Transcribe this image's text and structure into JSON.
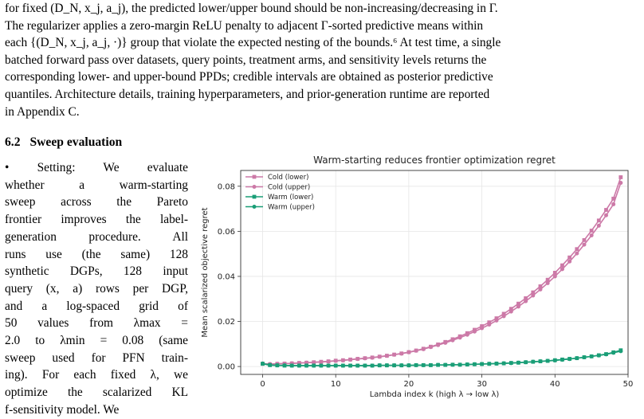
{
  "paragraph": {
    "lines": [
      "for fixed (D_N, x_j, a_j), the predicted lower/upper bound should be non-increasing/decreasing in Γ.",
      "The regularizer applies a zero-margin ReLU penalty to adjacent Γ-sorted predictive means within",
      "each {(D_N, x_j, a_j, ·)} group that violate the expected nesting of the bounds.⁶ At test time, a single",
      "batched forward pass over datasets, query points, treatment arms, and sensitivity levels returns the",
      "corresponding lower- and upper-bound PPDs; credible intervals are obtained as posterior predictive",
      "quantiles. Architecture details, training hyperparameters, and prior-generation runtime are reported",
      "in Appendix C."
    ]
  },
  "section": {
    "number": "6.2",
    "title": "Sweep evaluation"
  },
  "column": {
    "lines": [
      "• Setting:   We evaluate",
      "whether a warm-starting",
      "sweep across the Pareto",
      "frontier improves the label-",
      "generation procedure. All",
      "runs use (the same) 128",
      "synthetic DGPs, 128 input",
      "query (x, a) rows per DGP,",
      "and a log-spaced grid of",
      "50 values from λmax =",
      "2.0 to λmin = 0.08 (same",
      "sweep used for PFN train-",
      "ing). For each fixed λ, we",
      "optimize the scalarized KL",
      "f-sensitivity model.   We"
    ]
  },
  "chart_data": {
    "type": "line",
    "title": "Warm-starting reduces frontier optimization regret",
    "xlabel": "Lambda index k (high λ → low λ)",
    "ylabel": "Mean scalarized objective regret",
    "xlim": [
      -3,
      50
    ],
    "ylim": [
      -0.0035,
      0.087
    ],
    "xticks": [
      "0",
      "10",
      "20",
      "30",
      "40",
      "50"
    ],
    "yticks": [
      "0.00",
      "0.02",
      "0.04",
      "0.06",
      "0.08"
    ],
    "legend_position": "top-left",
    "x": [
      0,
      1,
      2,
      3,
      4,
      5,
      6,
      7,
      8,
      9,
      10,
      11,
      12,
      13,
      14,
      15,
      16,
      17,
      18,
      19,
      20,
      21,
      22,
      23,
      24,
      25,
      26,
      27,
      28,
      29,
      30,
      31,
      32,
      33,
      34,
      35,
      36,
      37,
      38,
      39,
      40,
      41,
      42,
      43,
      44,
      45,
      46,
      47,
      48,
      49
    ],
    "series": [
      {
        "name": "Cold (lower)",
        "color": "#cc79a7",
        "marker": "square",
        "values": [
          0.0012,
          0.001,
          0.0012,
          0.0013,
          0.0014,
          0.0016,
          0.0017,
          0.0019,
          0.0021,
          0.0023,
          0.0026,
          0.0028,
          0.0031,
          0.0034,
          0.0037,
          0.004,
          0.0044,
          0.0048,
          0.0053,
          0.0058,
          0.0064,
          0.0071,
          0.0079,
          0.0088,
          0.0098,
          0.0109,
          0.0121,
          0.0134,
          0.0148,
          0.0163,
          0.0179,
          0.0196,
          0.0214,
          0.0234,
          0.0256,
          0.0279,
          0.0303,
          0.0329,
          0.0356,
          0.0385,
          0.0416,
          0.0449,
          0.0484,
          0.0521,
          0.0561,
          0.0603,
          0.0648,
          0.0695,
          0.0745,
          0.084
        ]
      },
      {
        "name": "Cold (upper)",
        "color": "#cc79a7",
        "marker": "circle",
        "values": [
          0.0013,
          0.0011,
          0.0012,
          0.0013,
          0.0014,
          0.0015,
          0.0017,
          0.0018,
          0.002,
          0.0022,
          0.0025,
          0.0027,
          0.003,
          0.0033,
          0.0036,
          0.0039,
          0.0043,
          0.0047,
          0.0052,
          0.0057,
          0.0063,
          0.007,
          0.0077,
          0.0086,
          0.0095,
          0.0105,
          0.0116,
          0.0128,
          0.0141,
          0.0155,
          0.017,
          0.0186,
          0.0204,
          0.0223,
          0.0244,
          0.0266,
          0.029,
          0.0315,
          0.0342,
          0.037,
          0.04,
          0.0432,
          0.0466,
          0.0502,
          0.0541,
          0.0582,
          0.0625,
          0.0671,
          0.072,
          0.0815
        ]
      },
      {
        "name": "Warm (lower)",
        "color": "#1a9e77",
        "marker": "square",
        "values": [
          0.0012,
          0.0006,
          0.0005,
          0.0004,
          0.0004,
          0.0004,
          0.0004,
          0.0004,
          0.0004,
          0.0004,
          0.0004,
          0.0004,
          0.0004,
          0.0004,
          0.0004,
          0.0004,
          0.0005,
          0.0005,
          0.0005,
          0.0005,
          0.0005,
          0.0006,
          0.0006,
          0.0006,
          0.0007,
          0.0007,
          0.0008,
          0.0008,
          0.0009,
          0.001,
          0.0011,
          0.0012,
          0.0013,
          0.0014,
          0.0016,
          0.0017,
          0.0019,
          0.0021,
          0.0023,
          0.0025,
          0.0028,
          0.0031,
          0.0034,
          0.0037,
          0.0041,
          0.0045,
          0.005,
          0.0055,
          0.0063,
          0.0072
        ]
      },
      {
        "name": "Warm (upper)",
        "color": "#1a9e77",
        "marker": "circle",
        "values": [
          0.0013,
          0.0007,
          0.0005,
          0.0005,
          0.0004,
          0.0004,
          0.0004,
          0.0004,
          0.0004,
          0.0004,
          0.0004,
          0.0004,
          0.0004,
          0.0004,
          0.0004,
          0.0004,
          0.0005,
          0.0005,
          0.0005,
          0.0005,
          0.0005,
          0.0006,
          0.0006,
          0.0006,
          0.0007,
          0.0007,
          0.0008,
          0.0008,
          0.0009,
          0.001,
          0.0011,
          0.0012,
          0.0013,
          0.0014,
          0.0015,
          0.0017,
          0.0019,
          0.0021,
          0.0023,
          0.0025,
          0.0027,
          0.003,
          0.0033,
          0.0037,
          0.0041,
          0.0045,
          0.0049,
          0.0054,
          0.0061,
          0.0068
        ]
      }
    ]
  }
}
